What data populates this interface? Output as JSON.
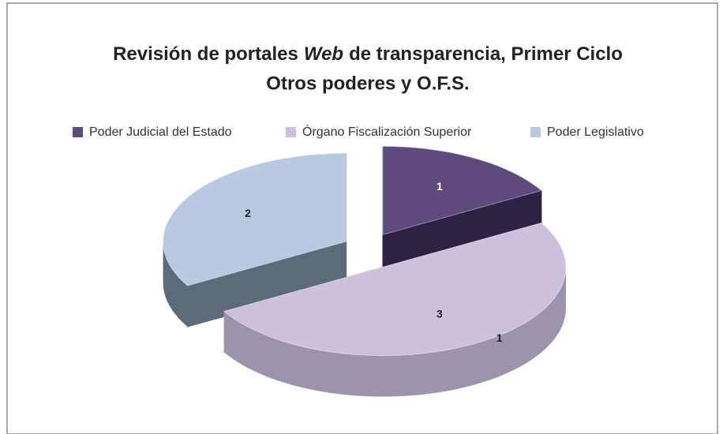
{
  "chart_data": {
    "type": "pie3d",
    "title": [
      "Revisión de portales",
      "Web",
      "de transparencia, Primer Ciclo"
    ],
    "title_italic_part": 1,
    "subtitle": "Otros poderes y O.F.S.",
    "categories": [
      "Poder Judicial del Estado",
      "Órgano Fiscalización Superior",
      "Poder Legislativo"
    ],
    "values": [
      1,
      3,
      2
    ],
    "colors": [
      "#5e4a7c",
      "#cdc0dd",
      "#b8c9e1"
    ],
    "side_colors": [
      "#2e2242",
      "#9d93ad",
      "#5c6a7a"
    ],
    "annotations": [
      "1"
    ],
    "legend": "top"
  }
}
